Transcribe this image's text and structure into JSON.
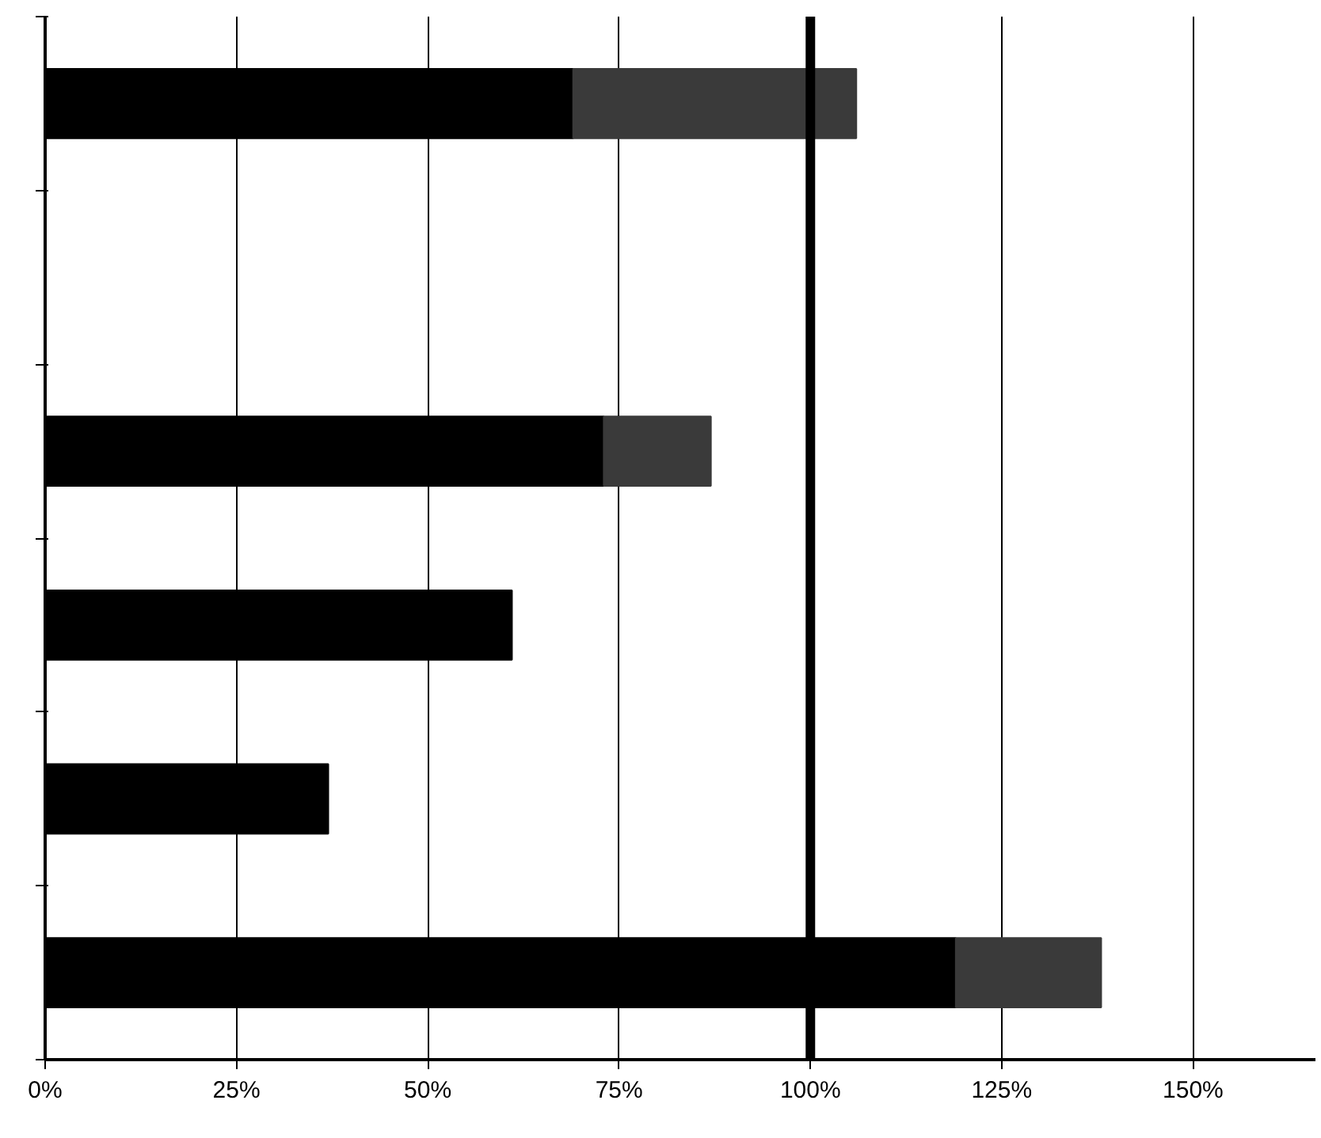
{
  "chart_data": {
    "type": "bar",
    "orientation": "horizontal",
    "stacked": true,
    "categories": [
      null,
      null,
      null,
      null,
      null,
      null
    ],
    "series": [
      {
        "color": "#000000",
        "values": [
          69,
          null,
          73,
          61,
          37,
          119
        ]
      },
      {
        "color": "#3a3a3a",
        "values": [
          37,
          null,
          14,
          null,
          null,
          19
        ]
      }
    ],
    "xlim": [
      0,
      166
    ],
    "xticks": [
      {
        "value": 0,
        "label": "0%"
      },
      {
        "value": 25,
        "label": "25%"
      },
      {
        "value": 50,
        "label": "50%"
      },
      {
        "value": 75,
        "label": "75%"
      },
      {
        "value": 100,
        "label": "100%"
      },
      {
        "value": 125,
        "label": "125%"
      },
      {
        "value": 150,
        "label": "150%"
      }
    ],
    "ref_lines": [
      {
        "axis": "x",
        "value": 100,
        "color": "#000000"
      }
    ],
    "grid": "x"
  }
}
